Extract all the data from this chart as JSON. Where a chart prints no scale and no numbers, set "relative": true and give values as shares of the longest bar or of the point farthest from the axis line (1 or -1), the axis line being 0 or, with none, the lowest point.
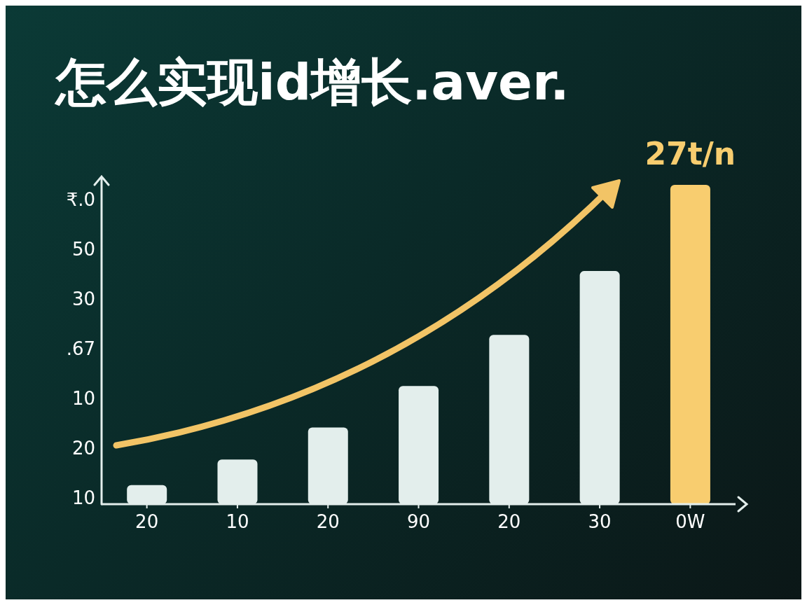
{
  "chart_data": {
    "type": "bar",
    "title": "怎么实现id增长.aver.",
    "categories": [
      "20",
      "10",
      "20",
      "90",
      "20",
      "30",
      "0W"
    ],
    "values": [
      0.06,
      0.14,
      0.24,
      0.37,
      0.53,
      0.73,
      1
    ],
    "colors": [
      "#e3eeec",
      "#e3eeec",
      "#e3eeec",
      "#e3eeec",
      "#e3eeec",
      "#e3eeec",
      "#f8cd6f"
    ],
    "relative": true,
    "annotations": [
      "₹.0",
      "50",
      "30",
      ".67",
      "10",
      "20",
      "10",
      {
        "text": "27t/n",
        "x": "0W",
        "y": 1
      }
    ]
  }
}
